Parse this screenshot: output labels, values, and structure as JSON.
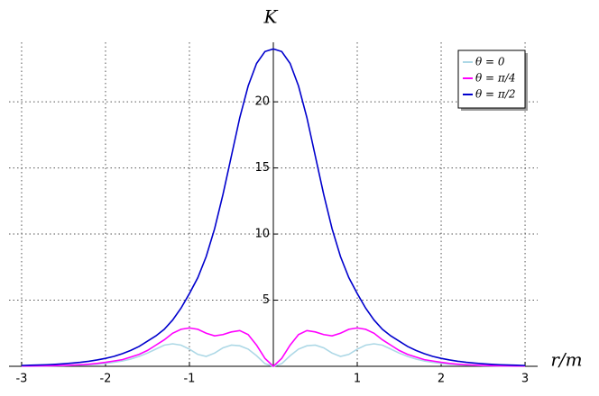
{
  "chart_data": {
    "type": "line",
    "xlabel": "r/m",
    "ylabel": "K",
    "x": [
      -3,
      -2.9,
      -2.8,
      -2.7,
      -2.6,
      -2.5,
      -2.4,
      -2.3,
      -2.2,
      -2.1,
      -2,
      -1.9,
      -1.8,
      -1.7,
      -1.6,
      -1.5,
      -1.4,
      -1.3,
      -1.2,
      -1.1,
      -1,
      -0.9,
      -0.8,
      -0.7,
      -0.6,
      -0.5,
      -0.4,
      -0.3,
      -0.2,
      -0.1,
      0,
      0.1,
      0.2,
      0.3,
      0.4,
      0.5,
      0.6,
      0.7,
      0.8,
      0.9,
      1,
      1.1,
      1.2,
      1.3,
      1.4,
      1.5,
      1.6,
      1.7,
      1.8,
      1.9,
      2,
      2.1,
      2.2,
      2.3,
      2.4,
      2.5,
      2.6,
      2.7,
      2.8,
      2.9,
      3
    ],
    "series": [
      {
        "name": "θ = 0",
        "color": "#add8e6",
        "values": [
          0.01,
          0.02,
          0.02,
          0.03,
          0.04,
          0.05,
          0.07,
          0.09,
          0.12,
          0.16,
          0.22,
          0.3,
          0.4,
          0.55,
          0.75,
          1.0,
          1.3,
          1.6,
          1.7,
          1.6,
          1.3,
          0.9,
          0.75,
          1.0,
          1.4,
          1.6,
          1.55,
          1.3,
          0.8,
          0.2,
          0,
          0.2,
          0.8,
          1.3,
          1.55,
          1.6,
          1.4,
          1.0,
          0.75,
          0.9,
          1.3,
          1.6,
          1.7,
          1.6,
          1.3,
          1.0,
          0.75,
          0.55,
          0.4,
          0.3,
          0.22,
          0.16,
          0.12,
          0.09,
          0.07,
          0.05,
          0.04,
          0.03,
          0.02,
          0.02,
          0.01
        ]
      },
      {
        "name": "θ = π/4",
        "color": "#ff00ff",
        "values": [
          0.02,
          0.02,
          0.03,
          0.04,
          0.05,
          0.07,
          0.09,
          0.12,
          0.16,
          0.22,
          0.3,
          0.4,
          0.5,
          0.7,
          0.9,
          1.2,
          1.6,
          2.0,
          2.5,
          2.8,
          2.9,
          2.8,
          2.5,
          2.3,
          2.4,
          2.6,
          2.7,
          2.4,
          1.6,
          0.6,
          0,
          0.6,
          1.6,
          2.4,
          2.7,
          2.6,
          2.4,
          2.3,
          2.5,
          2.8,
          2.9,
          2.8,
          2.5,
          2.0,
          1.6,
          1.2,
          0.9,
          0.7,
          0.5,
          0.4,
          0.3,
          0.22,
          0.16,
          0.12,
          0.09,
          0.07,
          0.05,
          0.04,
          0.03,
          0.02,
          0.02
        ]
      },
      {
        "name": "θ = π/2",
        "color": "#0000cd",
        "values": [
          0.06,
          0.08,
          0.1,
          0.12,
          0.15,
          0.19,
          0.24,
          0.3,
          0.38,
          0.48,
          0.6,
          0.75,
          0.95,
          1.2,
          1.5,
          1.9,
          2.3,
          2.8,
          3.5,
          4.4,
          5.5,
          6.7,
          8.3,
          10.4,
          13.0,
          15.9,
          18.8,
          21.2,
          22.9,
          23.8,
          24.0,
          23.8,
          22.9,
          21.2,
          18.8,
          15.9,
          13.0,
          10.4,
          8.3,
          6.7,
          5.5,
          4.4,
          3.5,
          2.8,
          2.3,
          1.9,
          1.5,
          1.2,
          0.95,
          0.75,
          0.6,
          0.48,
          0.38,
          0.3,
          0.24,
          0.19,
          0.15,
          0.12,
          0.1,
          0.08,
          0.06
        ]
      }
    ],
    "xlim": [
      -3.15,
      3.15
    ],
    "ylim": [
      0,
      24.5
    ],
    "xticks": [
      -3,
      -2,
      -1,
      1,
      2,
      3
    ],
    "yticks": [
      5,
      10,
      15,
      20
    ],
    "grid": true,
    "legend": "upper right"
  }
}
